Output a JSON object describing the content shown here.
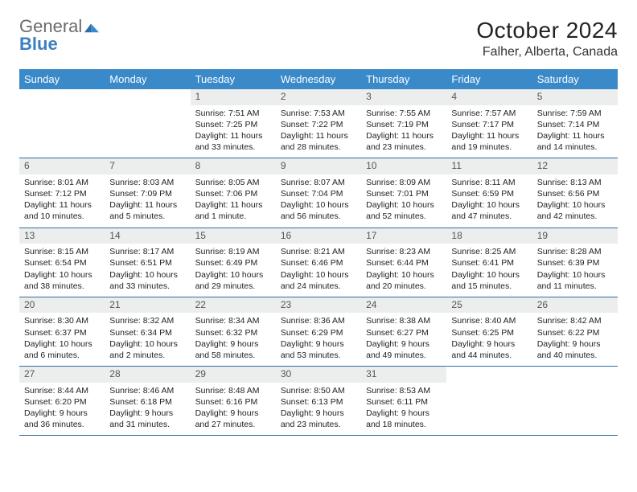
{
  "logo": {
    "general": "General",
    "blue": "Blue"
  },
  "colors": {
    "header_bg": "#3a89c9",
    "header_text": "#ffffff",
    "daynum_bg": "#eceded",
    "row_border": "#2e6da4",
    "logo_gray": "#6b6b6b",
    "logo_blue": "#3a7fc1"
  },
  "typography": {
    "month_title_size_pt": 21,
    "location_size_pt": 12,
    "day_header_size_pt": 10,
    "day_num_size_pt": 9,
    "body_size_pt": 8
  },
  "title": "October 2024",
  "location": "Falher, Alberta, Canada",
  "day_headers": [
    "Sunday",
    "Monday",
    "Tuesday",
    "Wednesday",
    "Thursday",
    "Friday",
    "Saturday"
  ],
  "weeks": [
    [
      null,
      null,
      {
        "d": "1",
        "sunrise": "Sunrise: 7:51 AM",
        "sunset": "Sunset: 7:25 PM",
        "daylight": "Daylight: 11 hours and 33 minutes."
      },
      {
        "d": "2",
        "sunrise": "Sunrise: 7:53 AM",
        "sunset": "Sunset: 7:22 PM",
        "daylight": "Daylight: 11 hours and 28 minutes."
      },
      {
        "d": "3",
        "sunrise": "Sunrise: 7:55 AM",
        "sunset": "Sunset: 7:19 PM",
        "daylight": "Daylight: 11 hours and 23 minutes."
      },
      {
        "d": "4",
        "sunrise": "Sunrise: 7:57 AM",
        "sunset": "Sunset: 7:17 PM",
        "daylight": "Daylight: 11 hours and 19 minutes."
      },
      {
        "d": "5",
        "sunrise": "Sunrise: 7:59 AM",
        "sunset": "Sunset: 7:14 PM",
        "daylight": "Daylight: 11 hours and 14 minutes."
      }
    ],
    [
      {
        "d": "6",
        "sunrise": "Sunrise: 8:01 AM",
        "sunset": "Sunset: 7:12 PM",
        "daylight": "Daylight: 11 hours and 10 minutes."
      },
      {
        "d": "7",
        "sunrise": "Sunrise: 8:03 AM",
        "sunset": "Sunset: 7:09 PM",
        "daylight": "Daylight: 11 hours and 5 minutes."
      },
      {
        "d": "8",
        "sunrise": "Sunrise: 8:05 AM",
        "sunset": "Sunset: 7:06 PM",
        "daylight": "Daylight: 11 hours and 1 minute."
      },
      {
        "d": "9",
        "sunrise": "Sunrise: 8:07 AM",
        "sunset": "Sunset: 7:04 PM",
        "daylight": "Daylight: 10 hours and 56 minutes."
      },
      {
        "d": "10",
        "sunrise": "Sunrise: 8:09 AM",
        "sunset": "Sunset: 7:01 PM",
        "daylight": "Daylight: 10 hours and 52 minutes."
      },
      {
        "d": "11",
        "sunrise": "Sunrise: 8:11 AM",
        "sunset": "Sunset: 6:59 PM",
        "daylight": "Daylight: 10 hours and 47 minutes."
      },
      {
        "d": "12",
        "sunrise": "Sunrise: 8:13 AM",
        "sunset": "Sunset: 6:56 PM",
        "daylight": "Daylight: 10 hours and 42 minutes."
      }
    ],
    [
      {
        "d": "13",
        "sunrise": "Sunrise: 8:15 AM",
        "sunset": "Sunset: 6:54 PM",
        "daylight": "Daylight: 10 hours and 38 minutes."
      },
      {
        "d": "14",
        "sunrise": "Sunrise: 8:17 AM",
        "sunset": "Sunset: 6:51 PM",
        "daylight": "Daylight: 10 hours and 33 minutes."
      },
      {
        "d": "15",
        "sunrise": "Sunrise: 8:19 AM",
        "sunset": "Sunset: 6:49 PM",
        "daylight": "Daylight: 10 hours and 29 minutes."
      },
      {
        "d": "16",
        "sunrise": "Sunrise: 8:21 AM",
        "sunset": "Sunset: 6:46 PM",
        "daylight": "Daylight: 10 hours and 24 minutes."
      },
      {
        "d": "17",
        "sunrise": "Sunrise: 8:23 AM",
        "sunset": "Sunset: 6:44 PM",
        "daylight": "Daylight: 10 hours and 20 minutes."
      },
      {
        "d": "18",
        "sunrise": "Sunrise: 8:25 AM",
        "sunset": "Sunset: 6:41 PM",
        "daylight": "Daylight: 10 hours and 15 minutes."
      },
      {
        "d": "19",
        "sunrise": "Sunrise: 8:28 AM",
        "sunset": "Sunset: 6:39 PM",
        "daylight": "Daylight: 10 hours and 11 minutes."
      }
    ],
    [
      {
        "d": "20",
        "sunrise": "Sunrise: 8:30 AM",
        "sunset": "Sunset: 6:37 PM",
        "daylight": "Daylight: 10 hours and 6 minutes."
      },
      {
        "d": "21",
        "sunrise": "Sunrise: 8:32 AM",
        "sunset": "Sunset: 6:34 PM",
        "daylight": "Daylight: 10 hours and 2 minutes."
      },
      {
        "d": "22",
        "sunrise": "Sunrise: 8:34 AM",
        "sunset": "Sunset: 6:32 PM",
        "daylight": "Daylight: 9 hours and 58 minutes."
      },
      {
        "d": "23",
        "sunrise": "Sunrise: 8:36 AM",
        "sunset": "Sunset: 6:29 PM",
        "daylight": "Daylight: 9 hours and 53 minutes."
      },
      {
        "d": "24",
        "sunrise": "Sunrise: 8:38 AM",
        "sunset": "Sunset: 6:27 PM",
        "daylight": "Daylight: 9 hours and 49 minutes."
      },
      {
        "d": "25",
        "sunrise": "Sunrise: 8:40 AM",
        "sunset": "Sunset: 6:25 PM",
        "daylight": "Daylight: 9 hours and 44 minutes."
      },
      {
        "d": "26",
        "sunrise": "Sunrise: 8:42 AM",
        "sunset": "Sunset: 6:22 PM",
        "daylight": "Daylight: 9 hours and 40 minutes."
      }
    ],
    [
      {
        "d": "27",
        "sunrise": "Sunrise: 8:44 AM",
        "sunset": "Sunset: 6:20 PM",
        "daylight": "Daylight: 9 hours and 36 minutes."
      },
      {
        "d": "28",
        "sunrise": "Sunrise: 8:46 AM",
        "sunset": "Sunset: 6:18 PM",
        "daylight": "Daylight: 9 hours and 31 minutes."
      },
      {
        "d": "29",
        "sunrise": "Sunrise: 8:48 AM",
        "sunset": "Sunset: 6:16 PM",
        "daylight": "Daylight: 9 hours and 27 minutes."
      },
      {
        "d": "30",
        "sunrise": "Sunrise: 8:50 AM",
        "sunset": "Sunset: 6:13 PM",
        "daylight": "Daylight: 9 hours and 23 minutes."
      },
      {
        "d": "31",
        "sunrise": "Sunrise: 8:53 AM",
        "sunset": "Sunset: 6:11 PM",
        "daylight": "Daylight: 9 hours and 18 minutes."
      },
      null,
      null
    ]
  ]
}
